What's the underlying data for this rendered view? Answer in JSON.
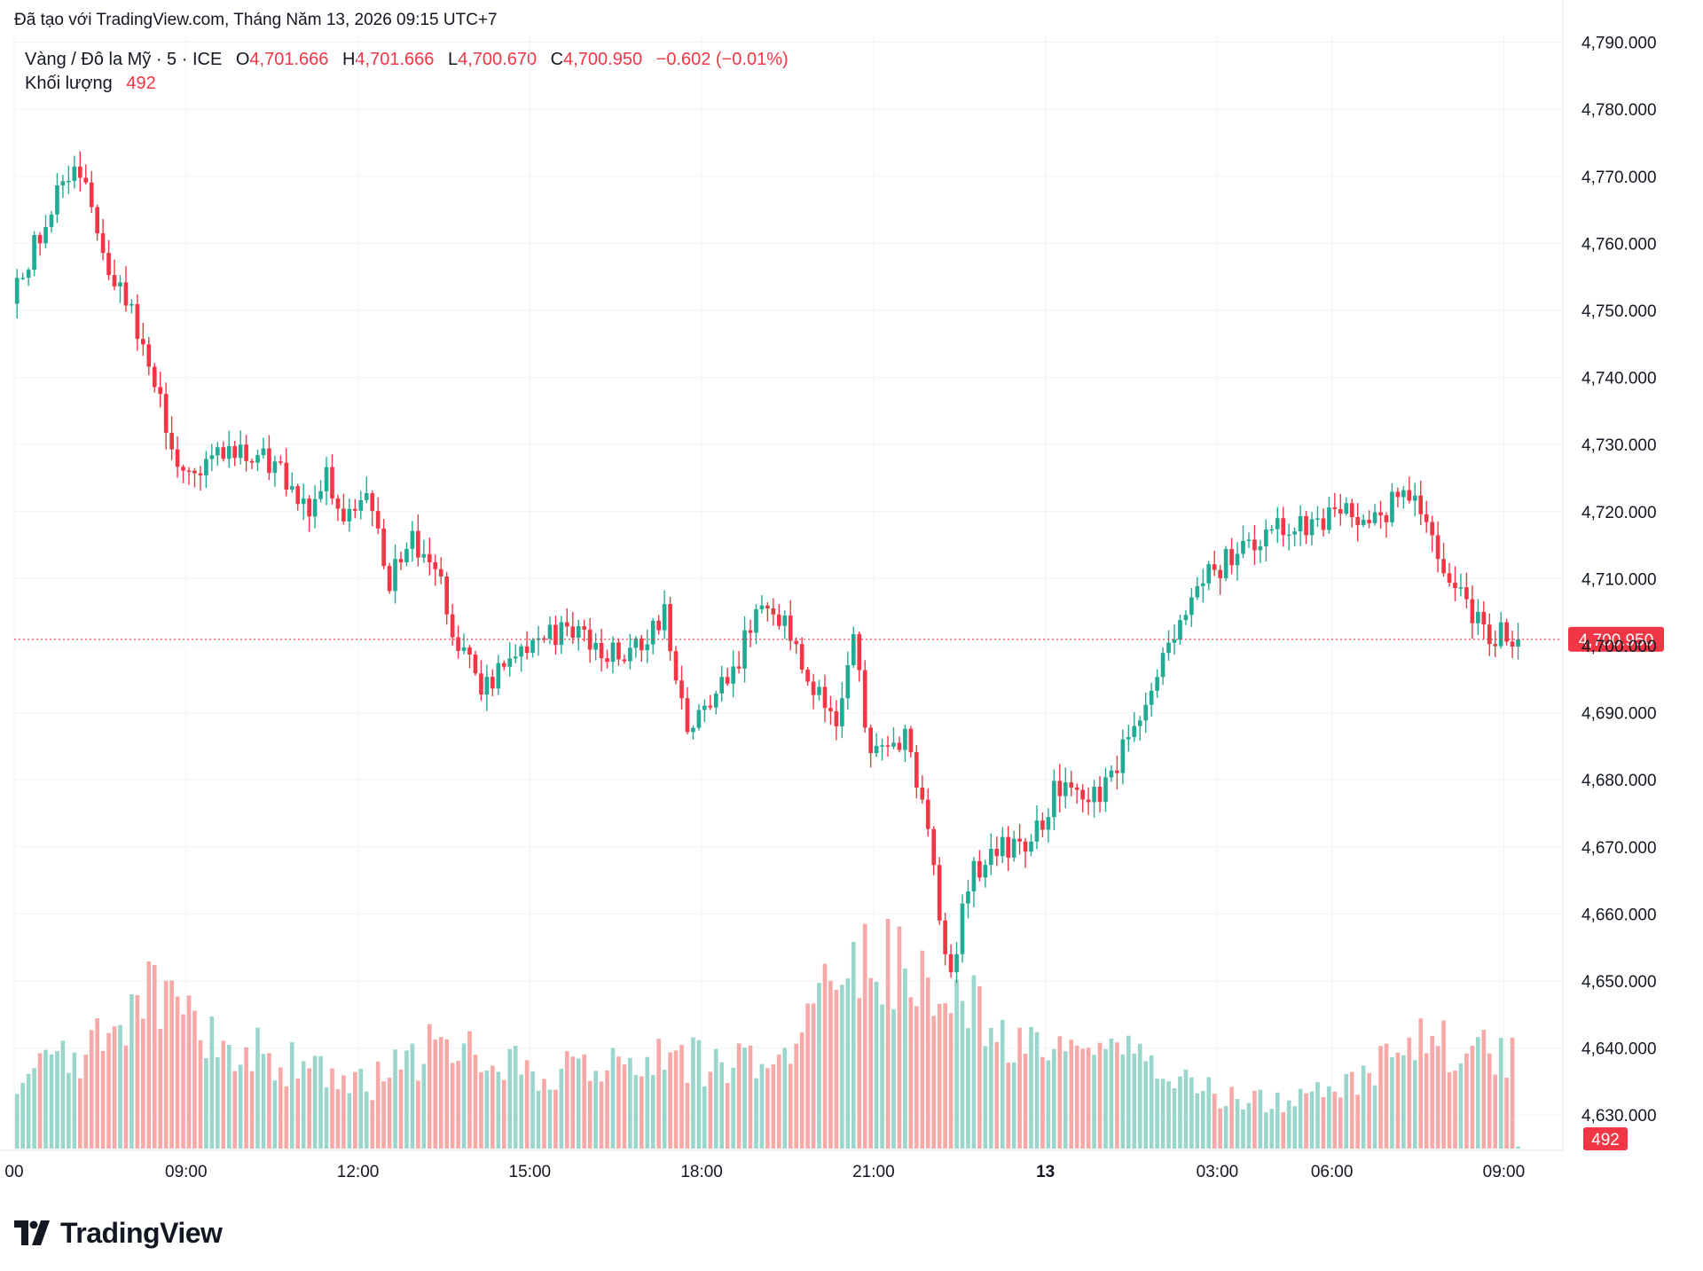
{
  "header": {
    "attribution": "Đã tạo với TradingView.com, Tháng Năm 13, 2026 09:15 UTC+7"
  },
  "legend": {
    "symbol": "Vàng / Đô la Mỹ · 5 · ICE",
    "o_label": "O",
    "o_value": "4,701.666",
    "h_label": "H",
    "h_value": "4,701.666",
    "l_label": "L",
    "l_value": "4,700.670",
    "c_label": "C",
    "c_value": "4,700.950",
    "change": "−0.602 (−0.01%)",
    "volume_label": "Khối lượng",
    "volume_value": "492"
  },
  "branding": {
    "logo_text": "TradingView"
  },
  "colors": {
    "up": "#22ab94",
    "down": "#f23645",
    "vol_up": "#9ad6cc",
    "vol_down": "#f7a9a7",
    "grid": "#f0f3fa",
    "text": "#131722",
    "last_price": "#f23645"
  },
  "chart_data": {
    "type": "candlestick",
    "symbol": "Vàng / Đô la Mỹ",
    "interval": "5",
    "ylim": [
      4625,
      4791
    ],
    "y_ticks": [
      4630,
      4640,
      4650,
      4660,
      4670,
      4680,
      4690,
      4700,
      4710,
      4720,
      4730,
      4740,
      4750,
      4760,
      4770,
      4780,
      4790
    ],
    "y_tick_labels": [
      "4,630.000",
      "4,640.000",
      "4,650.000",
      "4,660.000",
      "4,670.000",
      "4,680.000",
      "4,690.000",
      "4,700.000",
      "4,710.000",
      "4,720.000",
      "4,730.000",
      "4,740.000",
      "4,750.000",
      "4,760.000",
      "4,770.000",
      "4,780.000",
      "4,790.000"
    ],
    "x_range_bars": [
      0,
      270
    ],
    "x_ticks": [
      {
        "bar": 0,
        "label": "00",
        "bold": false
      },
      {
        "bar": 30,
        "label": "09:00",
        "bold": false
      },
      {
        "bar": 60,
        "label": "12:00",
        "bold": false
      },
      {
        "bar": 90,
        "label": "15:00",
        "bold": false
      },
      {
        "bar": 120,
        "label": "18:00",
        "bold": false
      },
      {
        "bar": 150,
        "label": "21:00",
        "bold": false
      },
      {
        "bar": 180,
        "label": "13",
        "bold": true
      },
      {
        "bar": 210,
        "label": "03:00",
        "bold": false
      },
      {
        "bar": 230,
        "label": "06:00",
        "bold": false
      },
      {
        "bar": 260,
        "label": "09:00",
        "bold": false
      }
    ],
    "last_price": 4700.95,
    "last_price_label": "4,700.950",
    "last_volume_label": "492",
    "path_points": [
      [
        0,
        4751
      ],
      [
        8,
        4768
      ],
      [
        12,
        4771
      ],
      [
        15,
        4760
      ],
      [
        20,
        4752
      ],
      [
        25,
        4740
      ],
      [
        28,
        4728
      ],
      [
        32,
        4726
      ],
      [
        40,
        4730
      ],
      [
        46,
        4727
      ],
      [
        52,
        4720
      ],
      [
        55,
        4725
      ],
      [
        58,
        4718
      ],
      [
        62,
        4722
      ],
      [
        66,
        4710
      ],
      [
        70,
        4716
      ],
      [
        74,
        4712
      ],
      [
        78,
        4700
      ],
      [
        82,
        4694
      ],
      [
        86,
        4697
      ],
      [
        92,
        4702
      ],
      [
        100,
        4701
      ],
      [
        108,
        4698
      ],
      [
        114,
        4705
      ],
      [
        118,
        4688
      ],
      [
        126,
        4696
      ],
      [
        130,
        4705
      ],
      [
        136,
        4702
      ],
      [
        140,
        4694
      ],
      [
        144,
        4688
      ],
      [
        147,
        4700
      ],
      [
        150,
        4684
      ],
      [
        156,
        4686
      ],
      [
        160,
        4672
      ],
      [
        164,
        4650
      ],
      [
        167,
        4665
      ],
      [
        172,
        4670
      ],
      [
        178,
        4670
      ],
      [
        182,
        4678
      ],
      [
        190,
        4678
      ],
      [
        196,
        4688
      ],
      [
        202,
        4700
      ],
      [
        208,
        4710
      ],
      [
        214,
        4714
      ],
      [
        220,
        4718
      ],
      [
        226,
        4718
      ],
      [
        232,
        4720
      ],
      [
        238,
        4718
      ],
      [
        242,
        4722
      ],
      [
        246,
        4720
      ],
      [
        250,
        4712
      ],
      [
        254,
        4706
      ],
      [
        258,
        4702
      ],
      [
        262,
        4701
      ]
    ],
    "volume_ylim": [
      0,
      70000
    ],
    "volume_profile": [
      [
        0,
        14000
      ],
      [
        8,
        22000
      ],
      [
        18,
        26000
      ],
      [
        22,
        38000
      ],
      [
        30,
        30000
      ],
      [
        40,
        24000
      ],
      [
        52,
        18000
      ],
      [
        62,
        16000
      ],
      [
        72,
        24000
      ],
      [
        82,
        22000
      ],
      [
        92,
        18000
      ],
      [
        102,
        20000
      ],
      [
        112,
        22000
      ],
      [
        122,
        20000
      ],
      [
        136,
        26000
      ],
      [
        142,
        42000
      ],
      [
        150,
        48000
      ],
      [
        160,
        40000
      ],
      [
        166,
        34000
      ],
      [
        176,
        24000
      ],
      [
        190,
        22000
      ],
      [
        200,
        20000
      ],
      [
        210,
        12000
      ],
      [
        222,
        11000
      ],
      [
        232,
        14000
      ],
      [
        242,
        26000
      ],
      [
        254,
        24000
      ],
      [
        260,
        22000
      ]
    ]
  }
}
